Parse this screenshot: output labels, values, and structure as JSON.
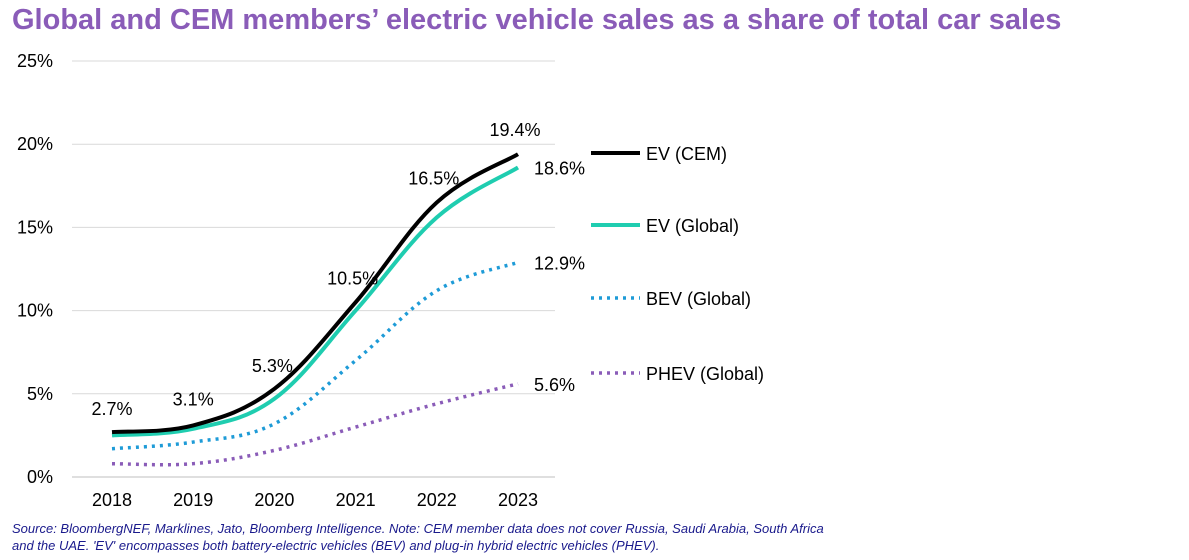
{
  "chart_data": {
    "type": "line",
    "title": "Global and CEM members’ electric vehicle sales as a share of total car sales",
    "x": [
      "2018",
      "2019",
      "2020",
      "2021",
      "2022",
      "2023"
    ],
    "ylim": [
      0,
      25
    ],
    "yticks": [
      0,
      5,
      10,
      15,
      20,
      25
    ],
    "ytick_labels": [
      "0%",
      "5%",
      "10%",
      "15%",
      "20%",
      "25%"
    ],
    "grid": "horizontal",
    "legend_position": "right",
    "series": [
      {
        "name": "EV (CEM)",
        "values": [
          2.7,
          3.1,
          5.3,
          10.5,
          16.5,
          19.4
        ],
        "color": "#000000",
        "style": "solid",
        "data_labels": [
          "2.7%",
          "3.1%",
          "5.3%",
          "10.5%",
          "16.5%",
          "19.4%"
        ]
      },
      {
        "name": "EV (Global)",
        "values": [
          2.5,
          2.9,
          4.7,
          10.0,
          15.6,
          18.6
        ],
        "color": "#1fcdb0",
        "style": "solid",
        "data_labels": [
          "",
          "",
          "",
          "",
          "",
          "18.6%"
        ]
      },
      {
        "name": "BEV (Global)",
        "values": [
          1.7,
          2.1,
          3.2,
          7.0,
          11.2,
          12.9
        ],
        "color": "#1e9bd7",
        "style": "dotted",
        "data_labels": [
          "",
          "",
          "",
          "",
          "",
          "12.9%"
        ]
      },
      {
        "name": "PHEV (Global)",
        "values": [
          0.8,
          0.8,
          1.6,
          3.0,
          4.4,
          5.6
        ],
        "color": "#8a5cb8",
        "style": "dotted",
        "data_labels": [
          "",
          "",
          "",
          "",
          "",
          "5.6%"
        ]
      }
    ],
    "source": "Source: BloombergNEF, Marklines, Jato, Bloomberg Intelligence. Note: CEM member data does not cover Russia, Saudi Arabia, South Africa and the UAE. 'EV' encompasses both battery-electric vehicles (BEV) and plug-in hybrid electric vehicles (PHEV)."
  }
}
